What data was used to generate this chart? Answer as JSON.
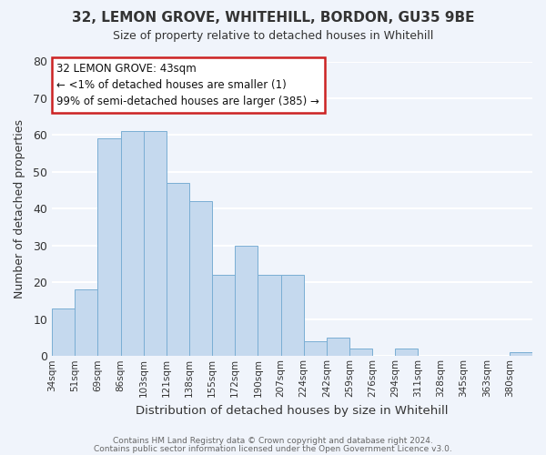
{
  "title": "32, LEMON GROVE, WHITEHILL, BORDON, GU35 9BE",
  "subtitle": "Size of property relative to detached houses in Whitehill",
  "xlabel": "Distribution of detached houses by size in Whitehill",
  "ylabel": "Number of detached properties",
  "bin_labels": [
    "34sqm",
    "51sqm",
    "69sqm",
    "86sqm",
    "103sqm",
    "121sqm",
    "138sqm",
    "155sqm",
    "172sqm",
    "190sqm",
    "207sqm",
    "224sqm",
    "242sqm",
    "259sqm",
    "276sqm",
    "294sqm",
    "311sqm",
    "328sqm",
    "345sqm",
    "363sqm",
    "380sqm"
  ],
  "bar_heights": [
    13,
    18,
    59,
    61,
    61,
    47,
    42,
    22,
    30,
    22,
    22,
    4,
    5,
    2,
    0,
    2,
    0,
    0,
    0,
    0,
    1
  ],
  "bar_color": "#c5d9ee",
  "bar_edge_color": "#7aaed4",
  "ylim": [
    0,
    80
  ],
  "yticks": [
    0,
    10,
    20,
    30,
    40,
    50,
    60,
    70,
    80
  ],
  "annotation_title": "32 LEMON GROVE: 43sqm",
  "annotation_line1": "← <1% of detached houses are smaller (1)",
  "annotation_line2": "99% of semi-detached houses are larger (385) →",
  "annotation_box_color": "#ffffff",
  "annotation_box_edge": "#cc2222",
  "footer_line1": "Contains HM Land Registry data © Crown copyright and database right 2024.",
  "footer_line2": "Contains public sector information licensed under the Open Government Licence v3.0.",
  "bg_color": "#f0f4fb",
  "grid_color": "#ffffff",
  "title_color": "#333333",
  "ylabel_color": "#333333"
}
